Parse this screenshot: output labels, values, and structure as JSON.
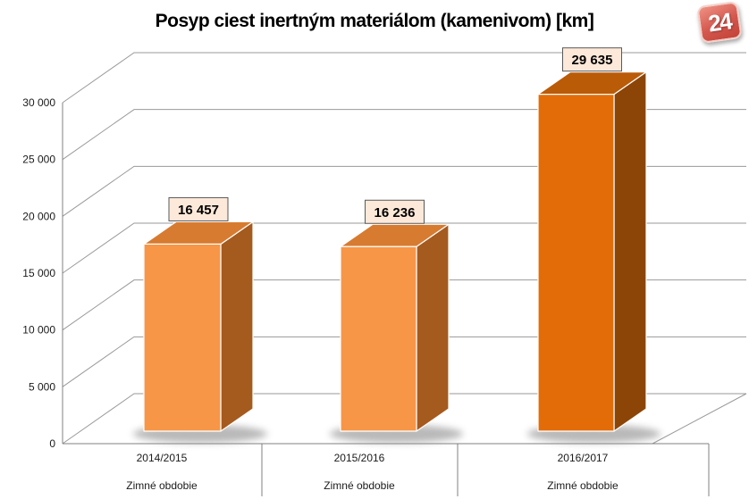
{
  "title": "Posyp ciest inertným materiálom (kamenivom) [km]",
  "watermark": {
    "text": "24"
  },
  "chart_data": {
    "type": "bar",
    "projection": "3d-column",
    "title": "Posyp ciest inertným materiálom (kamenivom) [km]",
    "categories": [
      "2014/2015",
      "2015/2016",
      "2016/2017"
    ],
    "category_sublabels": [
      "Zimné obdobie",
      "Zimné obdobie",
      "Zimné obdobie"
    ],
    "values": [
      16457,
      16236,
      29635
    ],
    "value_labels": [
      "16 457",
      "16 236",
      "29 635"
    ],
    "xlabel": "",
    "ylabel": "",
    "ylim": [
      0,
      30000
    ],
    "yticks": [
      0,
      5000,
      10000,
      15000,
      20000,
      25000,
      30000
    ],
    "ytick_labels": [
      "0",
      "5 000",
      "10 000",
      "15 000",
      "20 000",
      "25 000",
      "30 000"
    ],
    "grid": true,
    "legend": "none",
    "colors": {
      "bar_front": [
        "#F79646",
        "#F79646",
        "#E36C09"
      ],
      "bar_top": [
        "#D77B31",
        "#D77B31",
        "#BA5B08"
      ],
      "bar_side": [
        "#A55A1E",
        "#A55A1E",
        "#8C4507"
      ],
      "grid_line": "#9a9a9a",
      "axis_line": "#808080",
      "label_box_fill": "#FDE9D9",
      "label_box_border": "#595959",
      "text": "#000000"
    }
  }
}
